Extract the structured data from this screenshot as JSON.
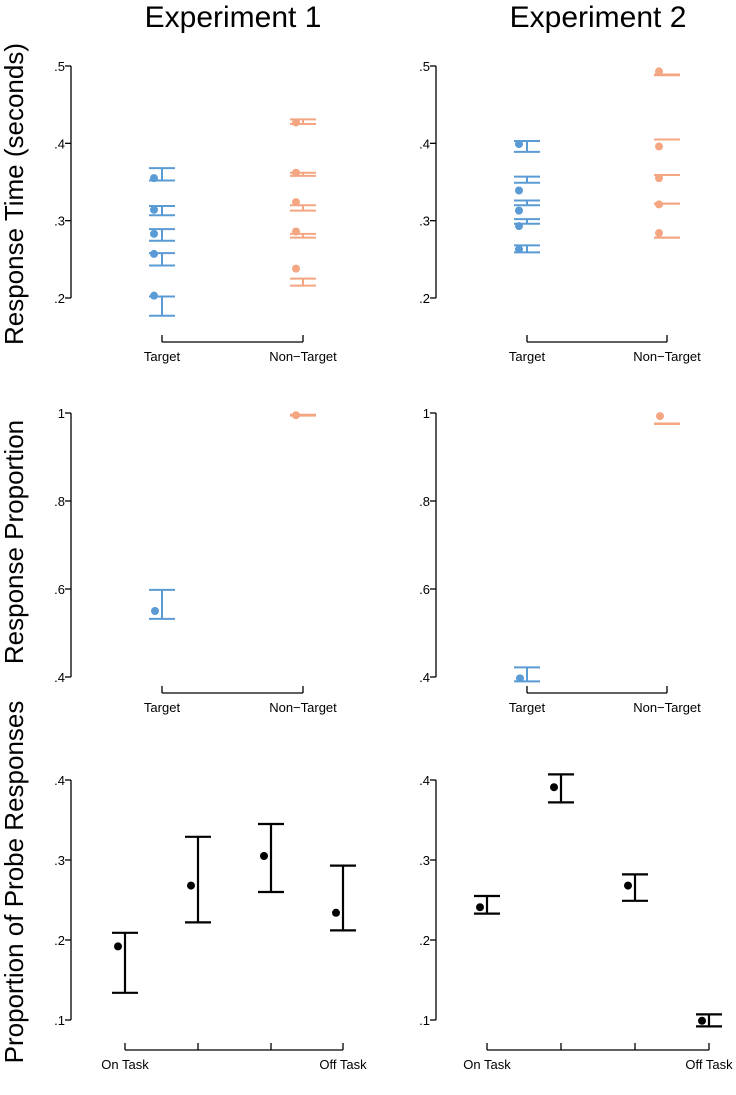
{
  "titles": [
    "Experiment 1",
    "Experiment 2"
  ],
  "row_ylabels": [
    "Response Time (seconds)",
    "Response Proportion",
    "Proportion of Probe Responses"
  ],
  "colors": {
    "target": "#5b9bd5",
    "nontarget": "#f4a582",
    "probe": "#000000"
  },
  "chart_data": [
    {
      "type": "scatter",
      "title": "Experiment 1",
      "ylabel": "Response Time (seconds)",
      "categories": [
        "Target",
        "Non−Target"
      ],
      "ylim": [
        0.2,
        0.5
      ],
      "yticks": [
        ".2",
        ".3",
        ".4",
        ".5"
      ],
      "yvals": [
        0.2,
        0.3,
        0.4,
        0.5
      ],
      "series": [
        {
          "name": "Target",
          "color_key": "target",
          "points": [
            0.355,
            0.314,
            0.283,
            0.257,
            0.203
          ],
          "ci": [
            [
              0.352,
              0.368
            ],
            [
              0.307,
              0.319
            ],
            [
              0.274,
              0.289
            ],
            [
              0.242,
              0.258
            ],
            [
              0.177,
              0.202
            ]
          ]
        },
        {
          "name": "Non−Target",
          "color_key": "nontarget",
          "points": [
            0.427,
            0.362,
            0.324,
            0.286,
            0.238
          ],
          "ci": [
            [
              0.425,
              0.431
            ],
            [
              0.358,
              0.362
            ],
            [
              0.313,
              0.32
            ],
            [
              0.278,
              0.283
            ],
            [
              0.216,
              0.225
            ]
          ]
        }
      ]
    },
    {
      "type": "scatter",
      "title": "Experiment 2",
      "ylabel": "",
      "categories": [
        "Target",
        "Non−Target"
      ],
      "ylim": [
        0.2,
        0.5
      ],
      "yticks": [
        ".2",
        ".3",
        ".4",
        ".5"
      ],
      "yvals": [
        0.2,
        0.3,
        0.4,
        0.5
      ],
      "series": [
        {
          "name": "Target",
          "color_key": "target",
          "points": [
            0.399,
            0.339,
            0.313,
            0.293,
            0.263
          ],
          "ci": [
            [
              0.389,
              0.403
            ],
            [
              0.349,
              0.357
            ],
            [
              0.32,
              0.326
            ],
            [
              0.296,
              0.302
            ],
            [
              0.259,
              0.268
            ]
          ]
        },
        {
          "name": "Non−Target",
          "color_key": "nontarget",
          "points": [
            0.493,
            0.396,
            0.355,
            0.321,
            0.284
          ],
          "ci": [
            [
              0.488,
              0.489
            ],
            [
              0.405,
              0.405
            ],
            [
              0.359,
              0.359
            ],
            [
              0.322,
              0.322
            ],
            [
              0.278,
              0.278
            ]
          ]
        }
      ]
    },
    {
      "type": "scatter",
      "title": "",
      "ylabel": "Response Proportion",
      "categories": [
        "Target",
        "Non−Target"
      ],
      "ylim": [
        0.4,
        1.0
      ],
      "yticks": [
        ".4",
        ".6",
        ".8",
        "1"
      ],
      "yvals": [
        0.4,
        0.6,
        0.8,
        1.0
      ],
      "series": [
        {
          "name": "Target",
          "color_key": "target",
          "points": [
            0.55
          ],
          "ci": [
            [
              0.532,
              0.598
            ]
          ]
        },
        {
          "name": "Non−Target",
          "color_key": "nontarget",
          "points": [
            0.995
          ],
          "ci": [
            [
              0.994,
              0.996
            ]
          ]
        }
      ]
    },
    {
      "type": "scatter",
      "title": "",
      "ylabel": "",
      "categories": [
        "Target",
        "Non−Target"
      ],
      "ylim": [
        0.4,
        1.0
      ],
      "yticks": [
        ".4",
        ".6",
        ".8",
        "1"
      ],
      "yvals": [
        0.4,
        0.6,
        0.8,
        1.0
      ],
      "series": [
        {
          "name": "Target",
          "color_key": "target",
          "points": [
            0.397
          ],
          "ci": [
            [
              0.39,
              0.422
            ]
          ]
        },
        {
          "name": "Non−Target",
          "color_key": "nontarget",
          "points": [
            0.993
          ],
          "ci": [
            [
              0.975,
              0.976
            ]
          ]
        }
      ]
    },
    {
      "type": "scatter",
      "title": "",
      "ylabel": "Proportion of Probe Responses",
      "categories": [
        "On Task",
        "",
        "",
        "Off Task"
      ],
      "ylim": [
        0.1,
        0.4
      ],
      "yticks": [
        ".1",
        ".2",
        ".3",
        ".4"
      ],
      "yvals": [
        0.1,
        0.2,
        0.3,
        0.4
      ],
      "series": [
        {
          "name": "Probe",
          "color_key": "probe",
          "points": [
            0.192,
            0.268,
            0.305,
            0.234
          ],
          "ci": [
            [
              0.134,
              0.209
            ],
            [
              0.222,
              0.329
            ],
            [
              0.26,
              0.345
            ],
            [
              0.212,
              0.293
            ]
          ]
        }
      ]
    },
    {
      "type": "scatter",
      "title": "",
      "ylabel": "",
      "categories": [
        "On Task",
        "",
        "",
        "Off Task"
      ],
      "ylim": [
        0.1,
        0.4
      ],
      "yticks": [
        ".1",
        ".2",
        ".3",
        ".4"
      ],
      "yvals": [
        0.1,
        0.2,
        0.3,
        0.4
      ],
      "series": [
        {
          "name": "Probe",
          "color_key": "probe",
          "points": [
            0.241,
            0.391,
            0.268,
            0.099
          ],
          "ci": [
            [
              0.233,
              0.255
            ],
            [
              0.372,
              0.407
            ],
            [
              0.249,
              0.282
            ],
            [
              0.092,
              0.107
            ]
          ]
        }
      ]
    }
  ]
}
